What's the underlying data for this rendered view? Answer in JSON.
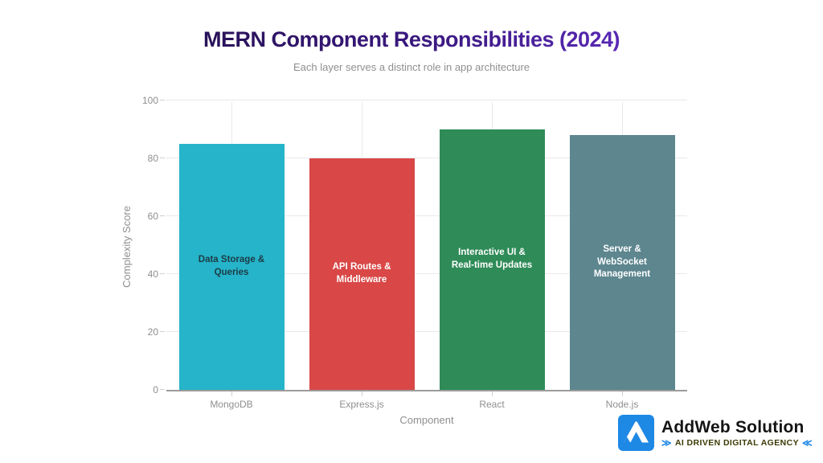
{
  "slide": {
    "title": "MERN Component Responsibilities (2024)",
    "subtitle": "Each layer serves a distinct role in app architecture"
  },
  "chart_data": {
    "type": "bar",
    "title": "MERN Component Responsibilities (2024)",
    "subtitle": "Each layer serves a distinct role in app architecture",
    "categories": [
      "MongoDB",
      "Express.js",
      "React",
      "Node.js"
    ],
    "values": [
      85,
      80,
      90,
      88
    ],
    "bar_labels": [
      "Data Storage & Queries",
      "API Routes & Middleware",
      "Interactive UI & Real-time Updates",
      "Server & WebSocket Management"
    ],
    "bar_colors": [
      "#25b4c9",
      "#d94747",
      "#2f8b58",
      "#5d868f"
    ],
    "bar_label_colors": [
      "#1d3b45",
      "#ffffff",
      "#ffffff",
      "#ffffff"
    ],
    "xlabel": "Component",
    "ylabel": "Complexity Score",
    "ylim": [
      0,
      100
    ],
    "yticks": [
      0,
      20,
      40,
      60,
      80,
      100
    ],
    "grid": true,
    "legend": false,
    "title_gradient": [
      "#170b33",
      "#7c3aed"
    ]
  },
  "branding": {
    "name": "AddWeb Solution",
    "tagline": "AI DRIVEN DIGITAL AGENCY",
    "left_glyph": "≫",
    "right_glyph": "≪",
    "logo_color": "#1e88e5",
    "name_color": "#141414",
    "tagline_color": "#3e3a06",
    "glyph_color": "#1e88e5"
  }
}
